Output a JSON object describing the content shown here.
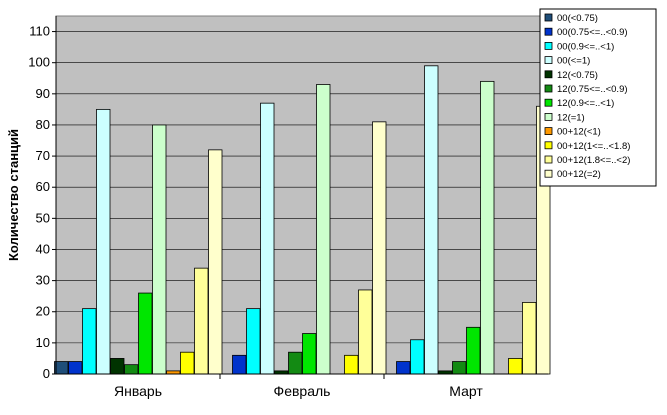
{
  "chart_data": {
    "type": "bar",
    "title": "",
    "xlabel": "",
    "ylabel": "Количество станций",
    "ylim": [
      0,
      115
    ],
    "yticks": [
      0,
      10,
      20,
      30,
      40,
      50,
      60,
      70,
      80,
      90,
      100,
      110
    ],
    "grid": true,
    "legend_position": "right",
    "categories": [
      "Январь",
      "Февраль",
      "Март"
    ],
    "series": [
      {
        "name": "00(<0.75)",
        "color": "#1F4E79",
        "values": [
          4,
          0,
          0
        ]
      },
      {
        "name": "00(0.75<=..<0.9)",
        "color": "#0033CC",
        "values": [
          4,
          6,
          4
        ]
      },
      {
        "name": "00(0.9<=..<1)",
        "color": "#00FFFF",
        "values": [
          21,
          21,
          11
        ]
      },
      {
        "name": "00(<=1)",
        "color": "#CCFFFF",
        "values": [
          85,
          87,
          99
        ]
      },
      {
        "name": "12(<0.75)",
        "color": "#003300",
        "values": [
          5,
          1,
          1
        ]
      },
      {
        "name": "12(0.75<=..<0.9)",
        "color": "#138A13",
        "values": [
          3,
          7,
          4
        ]
      },
      {
        "name": "12(0.9<=..<1)",
        "color": "#00E600",
        "values": [
          26,
          13,
          15
        ]
      },
      {
        "name": "12(=1)",
        "color": "#CCFFCC",
        "values": [
          80,
          93,
          94
        ]
      },
      {
        "name": "00+12(<1)",
        "color": "#FF9900",
        "values": [
          1,
          0,
          0
        ]
      },
      {
        "name": "00+12(1<=..<1.8)",
        "color": "#FFFF00",
        "values": [
          7,
          6,
          5
        ]
      },
      {
        "name": "00+12(1.8<=..<2)",
        "color": "#FFFF99",
        "values": [
          34,
          27,
          23
        ]
      },
      {
        "name": "00+12(=2)",
        "color": "#FFFFCC",
        "values": [
          72,
          81,
          86
        ]
      }
    ]
  }
}
